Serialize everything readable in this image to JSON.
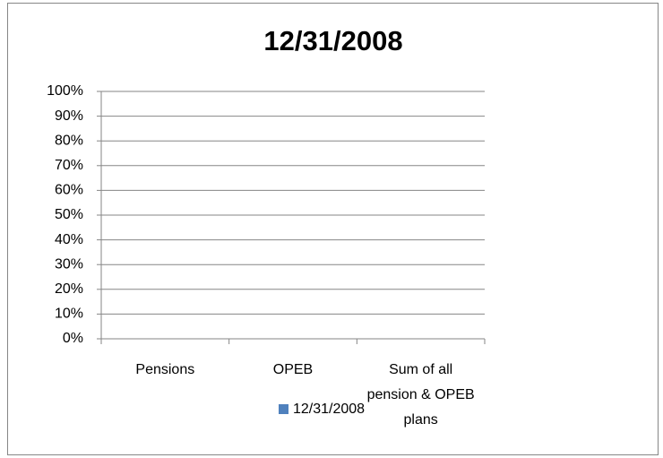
{
  "chart_data": {
    "type": "bar",
    "title": "12/31/2008",
    "categories": [
      "Pensions",
      "OPEB",
      "Sum of all pension & OPEB plans"
    ],
    "series": [
      {
        "name": "12/31/2008",
        "color": "#4f81bd",
        "values": [
          0,
          0,
          0
        ]
      }
    ],
    "ylim": [
      0,
      100
    ],
    "yticks": [
      {
        "value": 0,
        "label": "0%"
      },
      {
        "value": 10,
        "label": "10%"
      },
      {
        "value": 20,
        "label": "20%"
      },
      {
        "value": 30,
        "label": "30%"
      },
      {
        "value": 40,
        "label": "40%"
      },
      {
        "value": 50,
        "label": "50%"
      },
      {
        "value": 60,
        "label": "60%"
      },
      {
        "value": 70,
        "label": "70%"
      },
      {
        "value": 80,
        "label": "80%"
      },
      {
        "value": 90,
        "label": "90%"
      },
      {
        "value": 100,
        "label": "100%"
      }
    ],
    "grid": true,
    "legend": "bottom"
  }
}
